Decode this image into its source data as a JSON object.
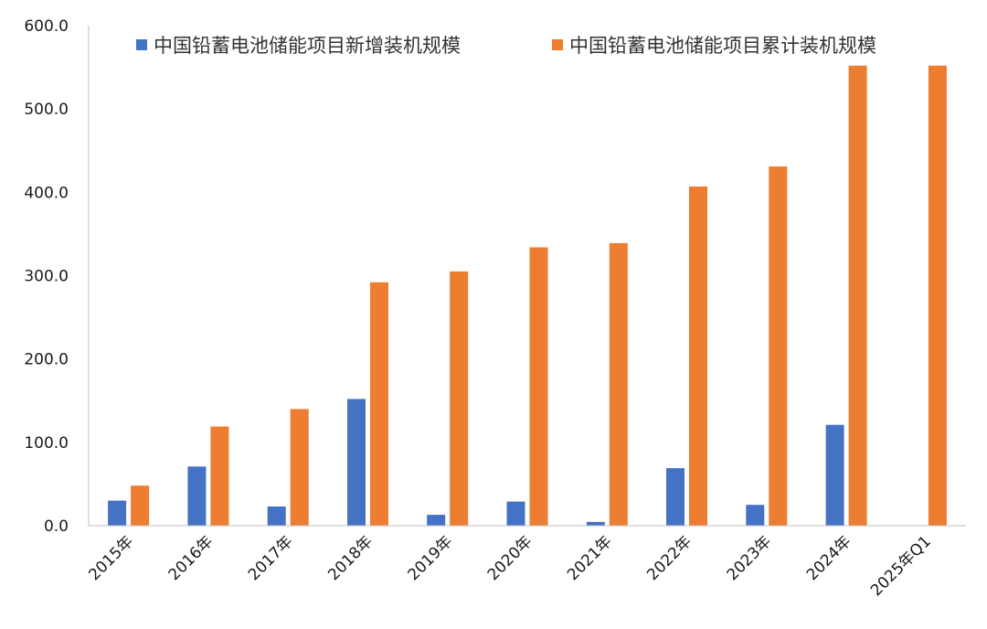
{
  "chart_data": {
    "type": "bar",
    "categories": [
      "2015年",
      "2016年",
      "2017年",
      "2018年",
      "2019年",
      "2020年",
      "2021年",
      "2022年",
      "2023年",
      "2024年",
      "2025年Q1"
    ],
    "series": [
      {
        "name": "中国铅蓄电池储能项目新增装机规模",
        "color": "#4472C4",
        "values": [
          30,
          71,
          23,
          152,
          13,
          29,
          4.5,
          69,
          25,
          121,
          0
        ]
      },
      {
        "name": "中国铅蓄电池储能项目累计装机规模",
        "color": "#ED7D31",
        "values": [
          48,
          119,
          140,
          292,
          305,
          334,
          339,
          407,
          431,
          552,
          552
        ]
      }
    ],
    "ylim": [
      0,
      600
    ],
    "yticks": [
      "0.0",
      "100.0",
      "200.0",
      "300.0",
      "400.0",
      "500.0",
      "600.0"
    ],
    "xlabel": "",
    "ylabel": "",
    "grid": false,
    "legend_position": "top"
  }
}
